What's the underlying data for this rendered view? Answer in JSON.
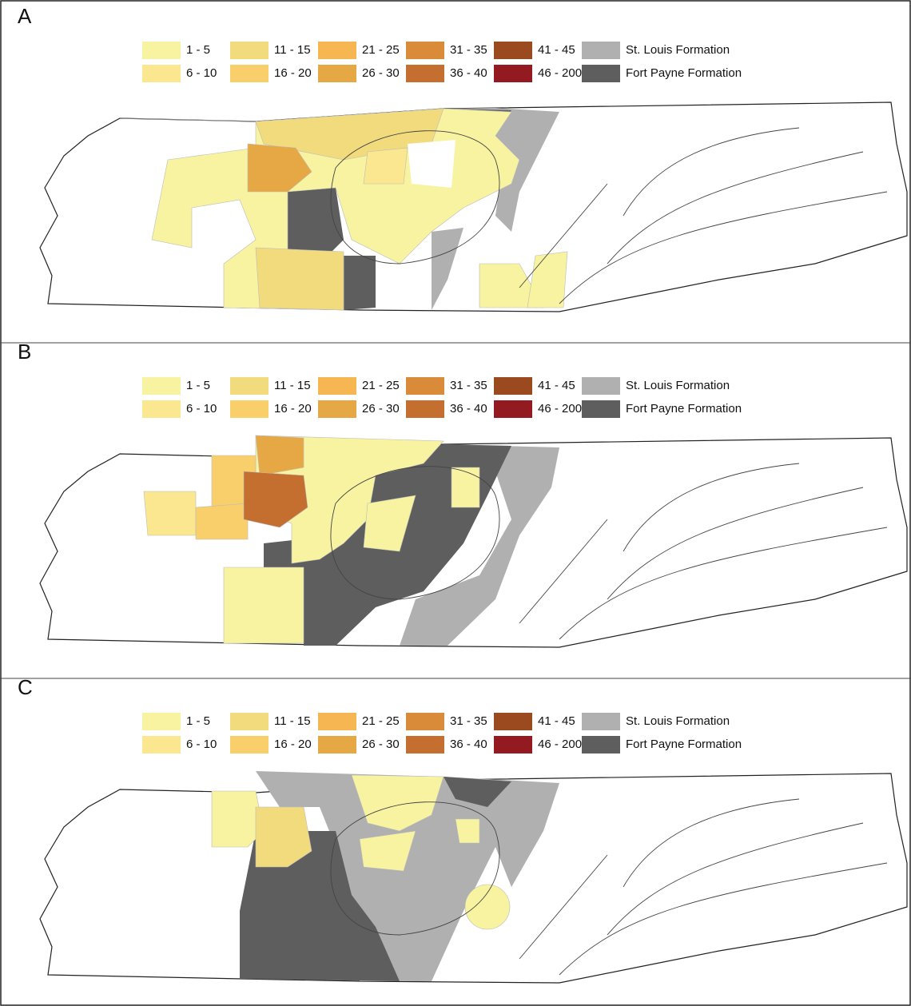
{
  "panels": [
    {
      "label": "A",
      "legend": [
        {
          "label": "1 - 5",
          "color": "#f7f3a1"
        },
        {
          "label": "6 - 10",
          "color": "#fbe78f"
        },
        {
          "label": "11 - 15",
          "color": "#f2db7d"
        },
        {
          "label": "16 - 20",
          "color": "#f9cf6b"
        },
        {
          "label": "21 - 25",
          "color": "#f6b652"
        },
        {
          "label": "26 - 30",
          "color": "#e6a845"
        },
        {
          "label": "31 - 35",
          "color": "#d98b3a"
        },
        {
          "label": "36 - 40",
          "color": "#c46e30"
        },
        {
          "label": "41 - 45",
          "color": "#9a4a1e"
        },
        {
          "label": "46 - 200",
          "color": "#931a20"
        },
        {
          "label": "St. Louis Formation",
          "color": "#b0b0b0"
        },
        {
          "label": "Fort Payne Formation",
          "color": "#5e5e5e"
        }
      ]
    },
    {
      "label": "B",
      "legend": [
        {
          "label": "1 - 5",
          "color": "#f7f3a1"
        },
        {
          "label": "6 - 10",
          "color": "#fbe78f"
        },
        {
          "label": "11 - 15",
          "color": "#f2db7d"
        },
        {
          "label": "16 - 20",
          "color": "#f9cf6b"
        },
        {
          "label": "21 - 25",
          "color": "#f6b652"
        },
        {
          "label": "26 - 30",
          "color": "#e6a845"
        },
        {
          "label": "31 - 35",
          "color": "#d98b3a"
        },
        {
          "label": "36 - 40",
          "color": "#c46e30"
        },
        {
          "label": "41 - 45",
          "color": "#9a4a1e"
        },
        {
          "label": "46 - 200",
          "color": "#931a20"
        },
        {
          "label": "St. Louis Formation",
          "color": "#b0b0b0"
        },
        {
          "label": "Fort Payne Formation",
          "color": "#5e5e5e"
        }
      ]
    },
    {
      "label": "C",
      "legend": [
        {
          "label": "1 - 5",
          "color": "#f7f3a1"
        },
        {
          "label": "6 - 10",
          "color": "#fbe78f"
        },
        {
          "label": "11 - 15",
          "color": "#f2db7d"
        },
        {
          "label": "16 - 20",
          "color": "#f9cf6b"
        },
        {
          "label": "21 - 25",
          "color": "#f6b652"
        },
        {
          "label": "26 - 30",
          "color": "#e6a845"
        },
        {
          "label": "31 - 35",
          "color": "#d98b3a"
        },
        {
          "label": "36 - 40",
          "color": "#c46e30"
        },
        {
          "label": "41 - 45",
          "color": "#9a4a1e"
        },
        {
          "label": "46 - 200",
          "color": "#931a20"
        },
        {
          "label": "St. Louis Formation",
          "color": "#b0b0b0"
        },
        {
          "label": "Fort Payne Formation",
          "color": "#5e5e5e"
        }
      ]
    }
  ]
}
